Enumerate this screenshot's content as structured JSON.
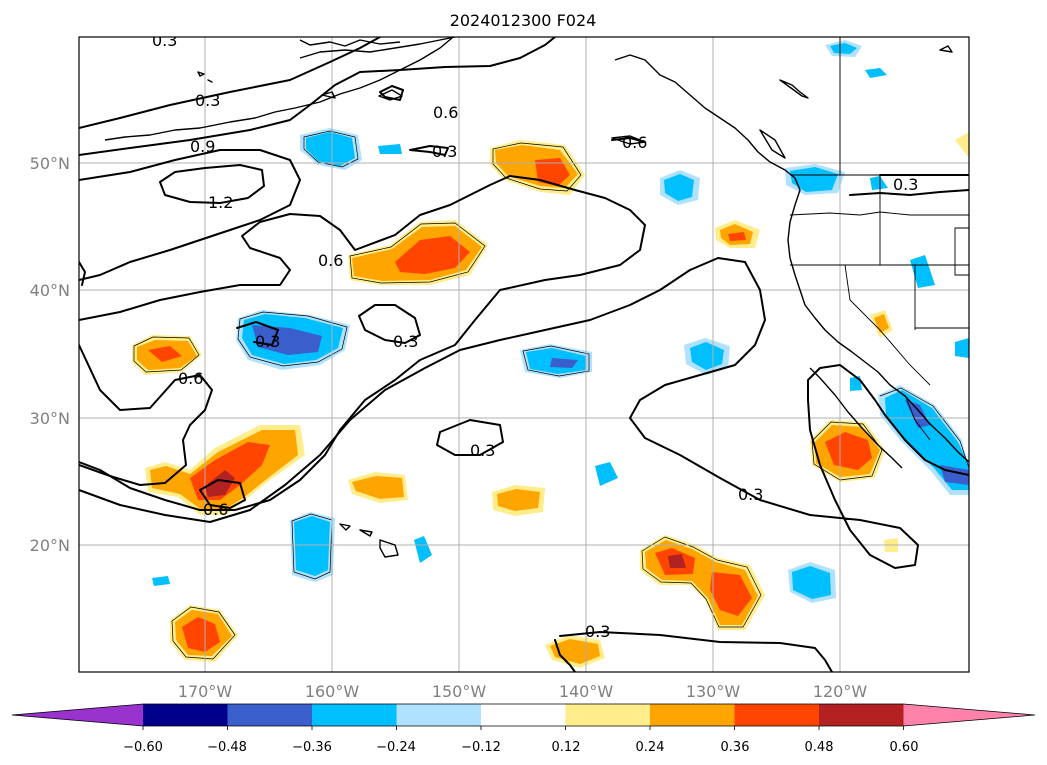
{
  "title": "2024012300 F024",
  "lat_labels": [
    "50°N",
    "40°N",
    "30°N",
    "20°N"
  ],
  "lon_labels": [
    "170°W",
    "160°W",
    "150°W",
    "140°W",
    "130°W",
    "120°W"
  ],
  "colorbar": {
    "tick_labels": [
      "−0.60",
      "−0.48",
      "−0.36",
      "−0.24",
      "−0.12",
      "0.12",
      "0.24",
      "0.36",
      "0.48",
      "0.60"
    ],
    "colors": [
      "#9a32cd",
      "#00008b",
      "#3a5fcd",
      "#00bfff",
      "#b0e2ff",
      "#ffffff",
      "#ffec8b",
      "#ffa500",
      "#ff4500",
      "#b22222",
      "#ff82ab"
    ]
  },
  "contour_labels": [
    "0.3",
    "0.3",
    "0.6",
    "0.9",
    "1.2",
    "0.3",
    "0.6",
    "0.6",
    "0.3",
    "0.3",
    "0.6",
    "0.3",
    "0.6",
    "0.3",
    "0.3",
    "0.3"
  ],
  "colors": {
    "neg1": "#b0e2ff",
    "neg2": "#00bfff",
    "neg3": "#3a5fcd",
    "pos1": "#ffec8b",
    "pos2": "#ffa500",
    "pos3": "#ff4500",
    "pos4": "#b22222",
    "grid": "#b0b0b0",
    "axis_text": "#808080"
  }
}
